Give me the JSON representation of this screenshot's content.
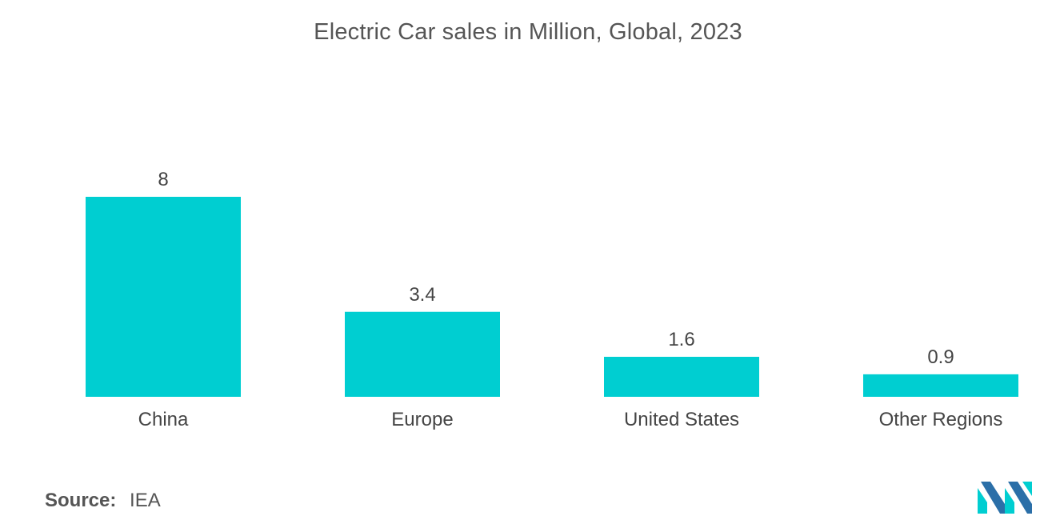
{
  "chart_data": {
    "type": "bar",
    "title": "Electric Car sales in Million, Global, 2023",
    "categories": [
      "China",
      "Europe",
      "United States",
      "Other Regions"
    ],
    "values": [
      8,
      3.4,
      1.6,
      0.9
    ],
    "value_labels": [
      "8",
      "3.4",
      "1.6",
      "0.9"
    ],
    "xlabel": "",
    "ylabel": "",
    "ylim": [
      0,
      8
    ],
    "grid": false,
    "legend": "none",
    "bar_color": "#00CED1"
  },
  "source": {
    "label": "Source:",
    "value": "IEA"
  },
  "brand": {
    "logo_icon": "mordor-intelligence-logo-icon",
    "colors": [
      "#00CED1",
      "#2B6FA8"
    ]
  }
}
